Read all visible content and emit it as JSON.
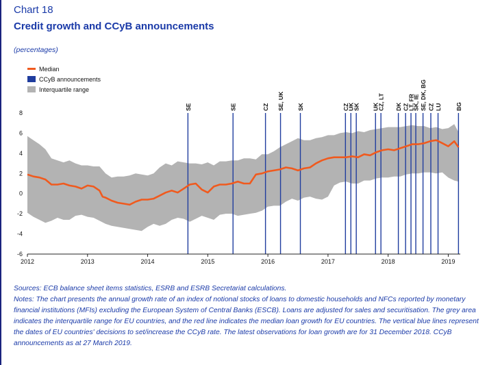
{
  "header": {
    "chart_number": "Chart 18",
    "title": "Credit growth and CCyB announcements",
    "subtitle": "(percentages)"
  },
  "footer": {
    "sources": "Sources: ECB balance sheet items statistics, ESRB and ESRB Secretariat calculations.",
    "notes": "Notes: The chart presents the annual growth rate of an index of notional stocks of loans to domestic households and NFCs reported by monetary financial institutions (MFIs) excluding the European System of Central Banks (ESCB). Loans are adjusted for sales and securitisation. The grey area indicates the interquartile range for EU countries, and the red line indicates the median loan growth for EU countries. The vertical blue lines represent the dates of EU countries' decisions to set/increase the CCyB rate. The latest observations for loan growth are for 31 December 2018. CCyB announcements as at 27 March 2019."
  },
  "colors": {
    "median": "#f05a1e",
    "ccyb": "#1f3c9e",
    "iqr": "#b3b3b3",
    "axis": "#222222"
  },
  "chart_data": {
    "type": "line",
    "legend": [
      {
        "name": "Median",
        "kind": "line"
      },
      {
        "name": "CCyB announcements",
        "kind": "vline"
      },
      {
        "name": "Interquartile range",
        "kind": "band"
      }
    ],
    "xlim": [
      2012.0,
      2019.2
    ],
    "ylim": [
      -6,
      8
    ],
    "xticks": [
      2012,
      2013,
      2014,
      2015,
      2016,
      2017,
      2018,
      2019
    ],
    "xtick_labels": [
      "2012",
      "2013",
      "2014",
      "2015",
      "2016",
      "2017",
      "2018",
      "2019"
    ],
    "yticks": [
      -6,
      -4,
      -2,
      0,
      2,
      4,
      6,
      8
    ],
    "ytick_labels": [
      "-6",
      "-4",
      "-2",
      "0",
      "2",
      "4",
      "6",
      "8"
    ],
    "series": [
      {
        "name": "Median",
        "x": [
          2012.0,
          2012.1,
          2012.2,
          2012.3,
          2012.4,
          2012.5,
          2012.6,
          2012.7,
          2012.8,
          2012.9,
          2013.0,
          2013.1,
          2013.2,
          2013.25,
          2013.3,
          2013.4,
          2013.5,
          2013.6,
          2013.7,
          2013.8,
          2013.9,
          2014.0,
          2014.1,
          2014.2,
          2014.3,
          2014.4,
          2014.5,
          2014.6,
          2014.7,
          2014.8,
          2014.9,
          2015.0,
          2015.1,
          2015.2,
          2015.3,
          2015.4,
          2015.5,
          2015.6,
          2015.7,
          2015.8,
          2015.9,
          2016.0,
          2016.1,
          2016.2,
          2016.3,
          2016.4,
          2016.5,
          2016.6,
          2016.7,
          2016.8,
          2016.9,
          2017.0,
          2017.1,
          2017.2,
          2017.3,
          2017.4,
          2017.5,
          2017.6,
          2017.7,
          2017.8,
          2017.9,
          2018.0,
          2018.1,
          2018.2,
          2018.3,
          2018.4,
          2018.5,
          2018.6,
          2018.7,
          2018.8,
          2018.9,
          2019.0,
          2019.1,
          2019.17
        ],
        "values": [
          1.9,
          1.7,
          1.6,
          1.4,
          0.9,
          0.9,
          1.0,
          0.8,
          0.7,
          0.5,
          0.8,
          0.7,
          0.3,
          -0.3,
          -0.4,
          -0.7,
          -0.9,
          -1.0,
          -1.1,
          -0.8,
          -0.6,
          -0.6,
          -0.5,
          -0.2,
          0.1,
          0.3,
          0.1,
          0.5,
          0.9,
          1.0,
          0.4,
          0.1,
          0.7,
          0.9,
          0.9,
          1.0,
          1.2,
          1.0,
          1.0,
          1.9,
          2.0,
          2.2,
          2.3,
          2.4,
          2.6,
          2.5,
          2.3,
          2.5,
          2.6,
          3.0,
          3.3,
          3.5,
          3.6,
          3.6,
          3.6,
          3.7,
          3.6,
          3.9,
          3.8,
          4.1,
          4.3,
          4.4,
          4.3,
          4.5,
          4.7,
          4.9,
          4.9,
          5.0,
          5.2,
          5.3,
          5.0,
          4.7,
          5.2,
          4.6
        ]
      },
      {
        "name": "Interquartile range",
        "x": [
          2012.0,
          2012.1,
          2012.2,
          2012.3,
          2012.4,
          2012.5,
          2012.6,
          2012.7,
          2012.8,
          2012.9,
          2013.0,
          2013.1,
          2013.2,
          2013.3,
          2013.4,
          2013.5,
          2013.6,
          2013.7,
          2013.8,
          2013.9,
          2014.0,
          2014.1,
          2014.2,
          2014.3,
          2014.4,
          2014.5,
          2014.6,
          2014.7,
          2014.8,
          2014.9,
          2015.0,
          2015.1,
          2015.2,
          2015.3,
          2015.4,
          2015.5,
          2015.6,
          2015.7,
          2015.8,
          2015.9,
          2016.0,
          2016.1,
          2016.2,
          2016.3,
          2016.4,
          2016.5,
          2016.6,
          2016.7,
          2016.8,
          2016.9,
          2017.0,
          2017.1,
          2017.2,
          2017.3,
          2017.4,
          2017.5,
          2017.6,
          2017.7,
          2017.8,
          2017.9,
          2018.0,
          2018.1,
          2018.2,
          2018.3,
          2018.4,
          2018.5,
          2018.6,
          2018.7,
          2018.8,
          2018.9,
          2019.0,
          2019.1,
          2019.17
        ],
        "upper": [
          5.7,
          5.3,
          4.9,
          4.4,
          3.5,
          3.3,
          3.1,
          3.3,
          3.0,
          2.8,
          2.8,
          2.7,
          2.7,
          2.0,
          1.6,
          1.7,
          1.7,
          1.8,
          2.0,
          1.9,
          1.8,
          2.0,
          2.6,
          3.0,
          2.8,
          3.2,
          3.1,
          3.0,
          3.0,
          2.9,
          3.1,
          2.8,
          3.2,
          3.2,
          3.3,
          3.3,
          3.5,
          3.5,
          3.4,
          3.9,
          3.9,
          4.2,
          4.6,
          4.9,
          5.2,
          5.5,
          5.3,
          5.3,
          5.5,
          5.6,
          5.8,
          5.8,
          6.0,
          6.1,
          6.0,
          6.2,
          6.1,
          6.3,
          6.4,
          6.5,
          6.6,
          6.6,
          6.6,
          6.7,
          6.8,
          6.7,
          6.7,
          6.5,
          6.6,
          6.4,
          6.5,
          6.9,
          6.1
        ],
        "lower": [
          -1.9,
          -2.3,
          -2.6,
          -2.9,
          -2.7,
          -2.4,
          -2.6,
          -2.6,
          -2.2,
          -2.1,
          -2.3,
          -2.4,
          -2.7,
          -3.0,
          -3.2,
          -3.3,
          -3.4,
          -3.5,
          -3.6,
          -3.7,
          -3.3,
          -3.0,
          -3.2,
          -3.0,
          -2.6,
          -2.4,
          -2.5,
          -2.8,
          -2.5,
          -2.2,
          -2.4,
          -2.6,
          -2.1,
          -2.0,
          -2.0,
          -2.2,
          -2.1,
          -2.0,
          -1.9,
          -1.7,
          -1.3,
          -1.2,
          -1.2,
          -0.8,
          -0.5,
          -0.7,
          -0.4,
          -0.3,
          -0.5,
          -0.6,
          -0.3,
          0.8,
          1.1,
          1.2,
          1.0,
          1.0,
          1.3,
          1.3,
          1.5,
          1.6,
          1.6,
          1.7,
          1.7,
          1.9,
          2.0,
          2.0,
          2.1,
          2.1,
          2.0,
          2.1,
          1.6,
          1.3,
          1.2
        ]
      }
    ],
    "ccyb_announcements": [
      {
        "x": 2014.67,
        "label": "SE"
      },
      {
        "x": 2015.42,
        "label": "SE"
      },
      {
        "x": 2015.96,
        "label": "CZ"
      },
      {
        "x": 2016.21,
        "label": "SE, UK"
      },
      {
        "x": 2016.54,
        "label": "SK"
      },
      {
        "x": 2017.29,
        "label": "CZ"
      },
      {
        "x": 2017.38,
        "label": "UK"
      },
      {
        "x": 2017.47,
        "label": "SK"
      },
      {
        "x": 2017.79,
        "label": "UK"
      },
      {
        "x": 2017.88,
        "label": "CZ, LT"
      },
      {
        "x": 2018.17,
        "label": "DK"
      },
      {
        "x": 2018.29,
        "label": "CZ"
      },
      {
        "x": 2018.38,
        "label": "LT, FR"
      },
      {
        "x": 2018.46,
        "label": "SK, IE"
      },
      {
        "x": 2018.58,
        "label": "SE, DK, BG"
      },
      {
        "x": 2018.71,
        "label": "CZ"
      },
      {
        "x": 2018.83,
        "label": "LU"
      },
      {
        "x": 2019.17,
        "label": "BG"
      }
    ]
  }
}
